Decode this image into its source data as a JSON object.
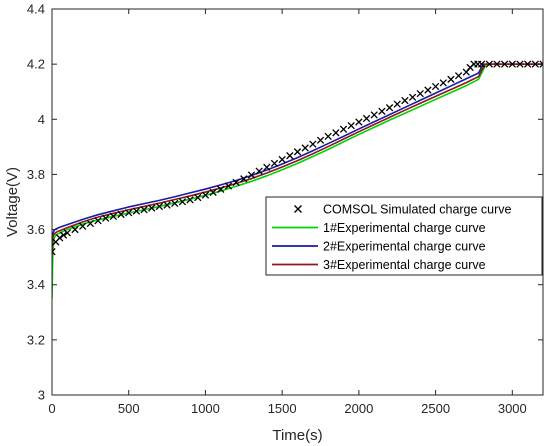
{
  "chart_data": {
    "type": "line",
    "xlabel": "Time(s)",
    "ylabel": "Voltage(V)",
    "xlim": [
      0,
      3200
    ],
    "ylim": [
      3,
      4.4
    ],
    "xticks": [
      0,
      500,
      1000,
      1500,
      2000,
      2500,
      3000
    ],
    "yticks": [
      3,
      3.2,
      3.4,
      3.6,
      3.8,
      4,
      4.2,
      4.4
    ],
    "xtick_labels": [
      "0",
      "500",
      "1000",
      "1500",
      "2000",
      "2500",
      "3000"
    ],
    "ytick_labels": [
      "3",
      "3.2",
      "3.4",
      "3.6",
      "3.8",
      "4",
      "4.2",
      "4.4"
    ],
    "grid": false,
    "legend_position": "right",
    "series": [
      {
        "name": "COMSOL Simulated charge curve",
        "color": "#000000",
        "marker": "x",
        "x": [
          0,
          25,
          50,
          75,
          100,
          150,
          200,
          250,
          300,
          350,
          400,
          450,
          500,
          550,
          600,
          650,
          700,
          750,
          800,
          850,
          900,
          950,
          1000,
          1050,
          1100,
          1150,
          1200,
          1250,
          1300,
          1350,
          1400,
          1450,
          1500,
          1550,
          1600,
          1650,
          1700,
          1750,
          1800,
          1850,
          1900,
          1950,
          2000,
          2050,
          2100,
          2150,
          2200,
          2250,
          2300,
          2350,
          2400,
          2450,
          2500,
          2550,
          2600,
          2650,
          2700,
          2725,
          2750,
          2775,
          2800,
          2850,
          2900,
          2950,
          3000,
          3050,
          3100,
          3150,
          3200
        ],
        "y": [
          3.52,
          3.555,
          3.57,
          3.58,
          3.588,
          3.6,
          3.612,
          3.622,
          3.632,
          3.641,
          3.648,
          3.655,
          3.661,
          3.667,
          3.672,
          3.678,
          3.684,
          3.689,
          3.695,
          3.701,
          3.708,
          3.716,
          3.725,
          3.735,
          3.746,
          3.758,
          3.771,
          3.784,
          3.798,
          3.812,
          3.826,
          3.84,
          3.854,
          3.868,
          3.882,
          3.896,
          3.91,
          3.924,
          3.938,
          3.951,
          3.964,
          3.977,
          3.99,
          4.003,
          4.016,
          4.029,
          4.042,
          4.055,
          4.068,
          4.08,
          4.093,
          4.106,
          4.119,
          4.132,
          4.145,
          4.158,
          4.171,
          4.188,
          4.2,
          4.2,
          4.2,
          4.2,
          4.2,
          4.2,
          4.2,
          4.2,
          4.2,
          4.2,
          4.2
        ]
      },
      {
        "name": "1#Experimental charge curve",
        "color": "#00d400",
        "x": [
          0,
          3,
          6,
          10,
          15,
          25,
          40,
          60,
          100,
          200,
          300,
          400,
          500,
          600,
          700,
          800,
          900,
          1000,
          1100,
          1200,
          1300,
          1400,
          1500,
          1600,
          1700,
          1800,
          1900,
          2000,
          2100,
          2200,
          2300,
          2400,
          2500,
          2600,
          2700,
          2780,
          2830,
          2900,
          3000,
          3100,
          3200
        ],
        "y": [
          3.35,
          3.45,
          3.52,
          3.55,
          3.57,
          3.58,
          3.585,
          3.59,
          3.6,
          3.62,
          3.635,
          3.648,
          3.66,
          3.672,
          3.684,
          3.697,
          3.71,
          3.724,
          3.74,
          3.757,
          3.775,
          3.795,
          3.817,
          3.84,
          3.865,
          3.891,
          3.918,
          3.945,
          3.971,
          3.997,
          4.022,
          4.047,
          4.072,
          4.097,
          4.122,
          4.145,
          4.2,
          4.2,
          4.2,
          4.2,
          4.2
        ]
      },
      {
        "name": "2#Experimental charge curve",
        "color": "#1a1aa6",
        "x": [
          0,
          3,
          6,
          10,
          15,
          25,
          40,
          60,
          100,
          200,
          300,
          400,
          500,
          600,
          700,
          800,
          900,
          1000,
          1100,
          1200,
          1300,
          1400,
          1500,
          1600,
          1700,
          1800,
          1900,
          2000,
          2100,
          2200,
          2300,
          2400,
          2500,
          2600,
          2700,
          2780,
          2810,
          2900,
          3000,
          3100,
          3200
        ],
        "y": [
          3.52,
          3.57,
          3.585,
          3.592,
          3.598,
          3.602,
          3.606,
          3.61,
          3.618,
          3.637,
          3.654,
          3.668,
          3.682,
          3.694,
          3.706,
          3.719,
          3.733,
          3.747,
          3.762,
          3.778,
          3.796,
          3.816,
          3.838,
          3.861,
          3.886,
          3.912,
          3.938,
          3.965,
          3.991,
          4.017,
          4.043,
          4.069,
          4.095,
          4.121,
          4.147,
          4.168,
          4.2,
          4.2,
          4.2,
          4.2,
          4.2
        ]
      },
      {
        "name": "3#Experimental charge curve",
        "color": "#8b1a1a",
        "x": [
          0,
          3,
          6,
          10,
          15,
          25,
          40,
          60,
          100,
          200,
          300,
          400,
          500,
          600,
          700,
          800,
          900,
          1000,
          1100,
          1200,
          1300,
          1400,
          1500,
          1600,
          1700,
          1800,
          1900,
          2000,
          2100,
          2200,
          2300,
          2400,
          2500,
          2600,
          2700,
          2780,
          2820,
          2900,
          3000,
          3100,
          3200
        ],
        "y": [
          3.5,
          3.55,
          3.57,
          3.578,
          3.584,
          3.589,
          3.594,
          3.598,
          3.607,
          3.628,
          3.645,
          3.659,
          3.672,
          3.684,
          3.696,
          3.709,
          3.722,
          3.736,
          3.751,
          3.767,
          3.785,
          3.805,
          3.827,
          3.85,
          3.875,
          3.901,
          3.928,
          3.955,
          3.981,
          4.007,
          4.033,
          4.058,
          4.083,
          4.108,
          4.133,
          4.155,
          4.2,
          4.2,
          4.2,
          4.2,
          4.2
        ]
      }
    ]
  }
}
